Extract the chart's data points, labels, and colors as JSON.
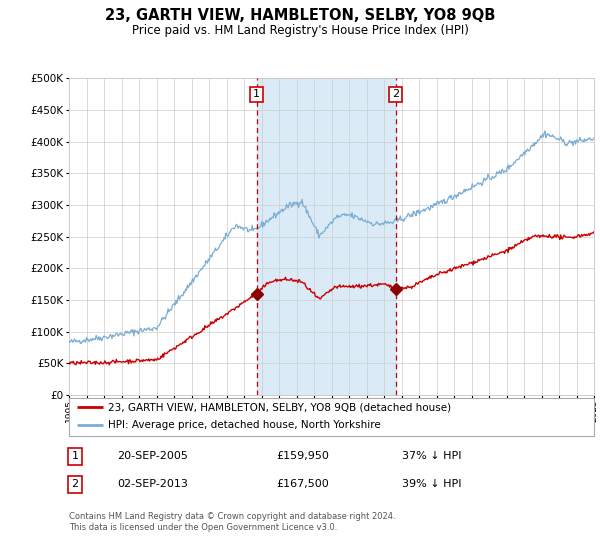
{
  "title": "23, GARTH VIEW, HAMBLETON, SELBY, YO8 9QB",
  "subtitle": "Price paid vs. HM Land Registry's House Price Index (HPI)",
  "title_fontsize": 10.5,
  "subtitle_fontsize": 8.5,
  "x_start_year": 1995,
  "x_end_year": 2025,
  "y_min": 0,
  "y_max": 500000,
  "y_ticks": [
    0,
    50000,
    100000,
    150000,
    200000,
    250000,
    300000,
    350000,
    400000,
    450000,
    500000
  ],
  "y_tick_labels": [
    "£0",
    "£50K",
    "£100K",
    "£150K",
    "£200K",
    "£250K",
    "£300K",
    "£350K",
    "£400K",
    "£450K",
    "£500K"
  ],
  "sale1_date": 2005.72,
  "sale1_price": 159950,
  "sale1_label": "1",
  "sale1_date_str": "20-SEP-2005",
  "sale1_price_str": "£159,950",
  "sale1_hpi_str": "37% ↓ HPI",
  "sale2_date": 2013.67,
  "sale2_price": 167500,
  "sale2_label": "2",
  "sale2_date_str": "02-SEP-2013",
  "sale2_price_str": "£167,500",
  "sale2_hpi_str": "39% ↓ HPI",
  "hpi_line_color": "#7badd4",
  "price_line_color": "#cc0000",
  "shading_color": "#daeaf6",
  "dashed_line_color": "#cc0000",
  "marker_color": "#8b0000",
  "grid_color": "#cccccc",
  "background_color": "#ffffff",
  "legend_entry1": "23, GARTH VIEW, HAMBLETON, SELBY, YO8 9QB (detached house)",
  "legend_entry2": "HPI: Average price, detached house, North Yorkshire",
  "footer_text": "Contains HM Land Registry data © Crown copyright and database right 2024.\nThis data is licensed under the Open Government Licence v3.0.",
  "annotation_box_color": "#cc0000"
}
